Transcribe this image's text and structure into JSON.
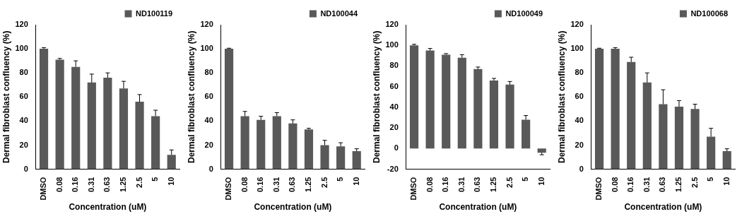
{
  "chart_data": [
    {
      "type": "bar",
      "categories": [
        "DMSO",
        "0.08",
        "0.16",
        "0.31",
        "0.63",
        "1.25",
        "2.5",
        "5",
        "10"
      ],
      "series": [
        {
          "name": "ND100119",
          "color": "#595959",
          "values": [
            100,
            91,
            85,
            72,
            76,
            67,
            56,
            44,
            12
          ],
          "errors": [
            1,
            1,
            5,
            7,
            4,
            6,
            6,
            5,
            4
          ]
        }
      ],
      "x_label": "Concentration (uM)",
      "y_label": "Dermal fibroblast confluency (%)",
      "ylim": [
        0,
        120
      ],
      "yticks": [
        0,
        20,
        40,
        60,
        80,
        100,
        120
      ],
      "grid": false,
      "legend": "upper right"
    },
    {
      "type": "bar",
      "categories": [
        "DMSO",
        "0.08",
        "0.16",
        "0.31",
        "0.63",
        "1.25",
        "2.5",
        "5",
        "10"
      ],
      "series": [
        {
          "name": "ND100044",
          "color": "#595959",
          "values": [
            100,
            44,
            41,
            44,
            38,
            33,
            20,
            19,
            15
          ],
          "errors": [
            0.5,
            4,
            3,
            3,
            3,
            1,
            4,
            3,
            2
          ]
        }
      ],
      "x_label": "Concentration (uM)",
      "y_label": "Dermal fibroblast confluency (%)",
      "ylim": [
        0,
        120
      ],
      "yticks": [
        0,
        20,
        40,
        60,
        80,
        100,
        120
      ],
      "grid": false,
      "legend": "upper right"
    },
    {
      "type": "bar",
      "categories": [
        "DMSO",
        "0.08",
        "0.16",
        "0.31",
        "0.63",
        "1.25",
        "2.5",
        "5",
        "10"
      ],
      "series": [
        {
          "name": "ND100049",
          "color": "#595959",
          "values": [
            100,
            95,
            91,
            88,
            77,
            66,
            62,
            28,
            -4
          ],
          "errors": [
            1,
            2,
            1,
            3,
            2,
            2,
            3,
            4,
            2
          ]
        }
      ],
      "x_label": "Concentration (uM)",
      "y_label": "Dermal fibroblast confluency (%)",
      "ylim": [
        -20,
        120
      ],
      "yticks": [
        -20,
        0,
        20,
        40,
        60,
        80,
        100,
        120
      ],
      "grid": false,
      "legend": "upper right"
    },
    {
      "type": "bar",
      "categories": [
        "DMSO",
        "0.08",
        "0.16",
        "0.31",
        "0.63",
        "1.25",
        "2.5",
        "5",
        "10"
      ],
      "series": [
        {
          "name": "ND100068",
          "color": "#595959",
          "values": [
            100,
            100,
            89,
            72,
            54,
            52,
            50,
            27,
            15
          ],
          "errors": [
            0.5,
            1,
            4,
            8,
            12,
            5,
            4,
            7,
            2
          ]
        }
      ],
      "x_label": "Concentration (uM)",
      "y_label": "Dermal fibroblast confluency (%)",
      "ylim": [
        0,
        120
      ],
      "yticks": [
        0,
        20,
        40,
        60,
        80,
        100,
        120
      ],
      "grid": false,
      "legend": "upper right"
    }
  ]
}
